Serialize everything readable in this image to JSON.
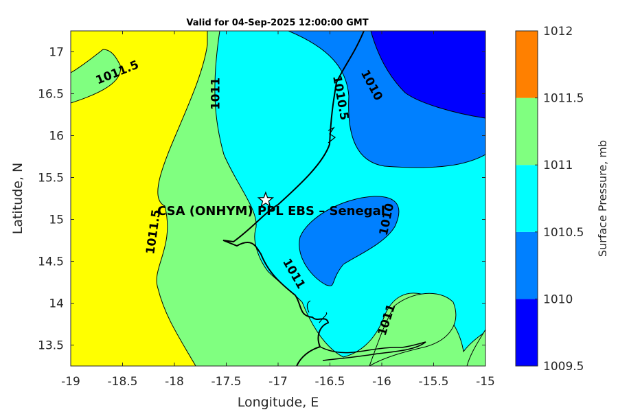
{
  "title": "Valid for 04-Sep-2025 12:00:00 GMT",
  "xlabel": "Longitude, E",
  "ylabel": "Latitude, N",
  "colorbar_label": "Surface Pressure, mb",
  "site_label": "CSA (ONHYM) PPL EBS  – Senegal",
  "site_marker": "star",
  "colors": {
    "1009.75": "#0000ff",
    "1010.25": "#0080ff",
    "1010.75": "#00ffff",
    "1011.25": "#80ff80",
    "1011.75": "#ffff00",
    "1012.25": "#ff8000"
  },
  "chart_data": {
    "type": "contour_map",
    "xlim": [
      -19,
      -15
    ],
    "ylim": [
      13.25,
      17.25
    ],
    "x_ticks": [
      "-19",
      "-18.5",
      "-18",
      "-17.5",
      "-17",
      "-16.5",
      "-16",
      "-15.5",
      "-15"
    ],
    "y_ticks": [
      "13.5",
      "14",
      "14.5",
      "15",
      "15.5",
      "16",
      "16.5",
      "17"
    ],
    "site": {
      "lon": -17.12,
      "lat": 15.23
    },
    "colorbar": {
      "levels": [
        "1009.5",
        "1010",
        "1010.5",
        "1011",
        "1011.5",
        "1012"
      ],
      "range": [
        1009.5,
        1012
      ]
    },
    "contour_labels": [
      {
        "text": "1011.5",
        "lon": -18.55,
        "lat": 16.75,
        "angle": -22
      },
      {
        "text": "1011",
        "lon": -17.6,
        "lat": 16.5,
        "angle": -90
      },
      {
        "text": "1010.5",
        "lon": -16.4,
        "lat": 16.45,
        "angle": 80
      },
      {
        "text": "1010",
        "lon": -16.1,
        "lat": 16.6,
        "angle": 62
      },
      {
        "text": "1011.5",
        "lon": -18.2,
        "lat": 14.85,
        "angle": -82
      },
      {
        "text": "1010",
        "lon": -15.95,
        "lat": 15.0,
        "angle": -78
      },
      {
        "text": "1011",
        "lon": -16.85,
        "lat": 14.35,
        "angle": 60
      },
      {
        "text": "1011",
        "lon": -15.95,
        "lat": 13.8,
        "angle": -72
      }
    ]
  }
}
